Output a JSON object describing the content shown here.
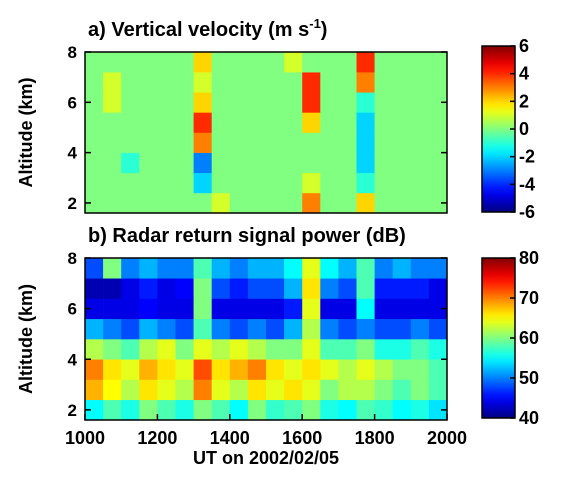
{
  "chart_data": [
    {
      "type": "heatmap",
      "title": "a) Vertical velocity (m s",
      "title_superscript": "-1",
      "title_end": ")",
      "ylabel": "Altitude (km)",
      "xlim": [
        1000,
        2000
      ],
      "ylim": [
        1.6,
        8
      ],
      "yticks": [
        2,
        4,
        6,
        8
      ],
      "xbins": [
        1000,
        1050,
        1100,
        1150,
        1200,
        1250,
        1300,
        1350,
        1400,
        1450,
        1500,
        1550,
        1600,
        1650,
        1700,
        1750,
        1800,
        1850,
        1900,
        1950,
        2000
      ],
      "ybins": [
        1.6,
        2.4,
        3.2,
        4,
        4.8,
        5.6,
        6.4,
        7.2,
        8
      ],
      "z": [
        [
          0,
          0,
          0,
          0,
          0,
          0,
          0,
          1,
          0,
          0,
          0,
          0,
          3,
          0,
          0,
          2,
          0,
          0,
          0,
          0
        ],
        [
          0,
          0,
          0,
          0,
          0,
          0,
          -2,
          0,
          0,
          0,
          0,
          0,
          1,
          0,
          0,
          -1,
          0,
          0,
          0,
          0
        ],
        [
          0,
          0,
          -1,
          0,
          0,
          0,
          -3,
          0,
          0,
          0,
          0,
          0,
          0,
          0,
          0,
          -2,
          0,
          0,
          0,
          0
        ],
        [
          0,
          0,
          0,
          0,
          0,
          0,
          3,
          0,
          0,
          0,
          0,
          0,
          0,
          0,
          0,
          -2,
          0,
          0,
          0,
          0
        ],
        [
          0,
          0,
          0,
          0,
          0,
          0,
          4,
          0,
          0,
          0,
          0,
          0,
          2,
          0,
          0,
          -2,
          0,
          0,
          0,
          0
        ],
        [
          0,
          1,
          0,
          0,
          0,
          0,
          2,
          0,
          0,
          0,
          0,
          0,
          4,
          0,
          0,
          -1,
          0,
          0,
          0,
          0
        ],
        [
          0,
          1,
          0,
          0,
          0,
          0,
          1,
          0,
          0,
          0,
          0,
          0,
          4,
          0,
          0,
          3,
          0,
          0,
          0,
          0
        ],
        [
          0,
          0,
          0,
          0,
          0,
          0,
          2,
          0,
          0,
          0,
          0,
          1,
          0,
          0,
          0,
          4,
          0,
          0,
          0,
          0
        ]
      ],
      "colormap": "jet",
      "clim": [
        -6,
        6
      ],
      "cticks": [
        -6,
        -4,
        -2,
        0,
        2,
        4,
        6
      ]
    },
    {
      "type": "heatmap",
      "title": "b) Radar return signal power (dB)",
      "ylabel": "Altitude (km)",
      "xlabel": "UT on 2002/02/05",
      "xlim": [
        1000,
        2000
      ],
      "xticks": [
        1000,
        1200,
        1400,
        1600,
        1800,
        2000
      ],
      "ylim": [
        1.6,
        8
      ],
      "yticks": [
        2,
        4,
        6,
        8
      ],
      "xbins": [
        1000,
        1050,
        1100,
        1150,
        1200,
        1250,
        1300,
        1350,
        1400,
        1450,
        1500,
        1550,
        1600,
        1650,
        1700,
        1750,
        1800,
        1850,
        1900,
        1950,
        2000
      ],
      "ybins": [
        1.6,
        2.4,
        3.2,
        4,
        4.8,
        5.6,
        6.4,
        7.2,
        8
      ],
      "z": [
        [
          55,
          58,
          56,
          60,
          58,
          56,
          60,
          58,
          55,
          60,
          57,
          58,
          60,
          56,
          55,
          58,
          57,
          55,
          56,
          54
        ],
        [
          68,
          65,
          62,
          66,
          64,
          62,
          70,
          64,
          62,
          66,
          64,
          66,
          64,
          60,
          62,
          62,
          60,
          58,
          60,
          58
        ],
        [
          70,
          66,
          64,
          68,
          66,
          64,
          72,
          66,
          68,
          70,
          66,
          64,
          66,
          64,
          62,
          64,
          62,
          60,
          60,
          58
        ],
        [
          62,
          60,
          58,
          62,
          64,
          60,
          64,
          62,
          64,
          62,
          60,
          60,
          64,
          58,
          58,
          60,
          56,
          56,
          58,
          56
        ],
        [
          52,
          50,
          48,
          52,
          50,
          48,
          58,
          50,
          48,
          50,
          48,
          52,
          62,
          50,
          48,
          50,
          48,
          48,
          50,
          48
        ],
        [
          44,
          44,
          44,
          45,
          44,
          44,
          60,
          44,
          44,
          44,
          44,
          46,
          64,
          44,
          44,
          55,
          44,
          44,
          44,
          44
        ],
        [
          42,
          42,
          44,
          46,
          44,
          45,
          60,
          48,
          46,
          48,
          48,
          52,
          66,
          50,
          48,
          58,
          46,
          46,
          46,
          44
        ],
        [
          48,
          60,
          50,
          52,
          50,
          50,
          58,
          52,
          50,
          52,
          52,
          55,
          64,
          55,
          52,
          58,
          50,
          52,
          50,
          50
        ]
      ],
      "colormap": "jet",
      "clim": [
        40,
        80
      ],
      "cticks": [
        40,
        50,
        60,
        70,
        80
      ]
    }
  ]
}
